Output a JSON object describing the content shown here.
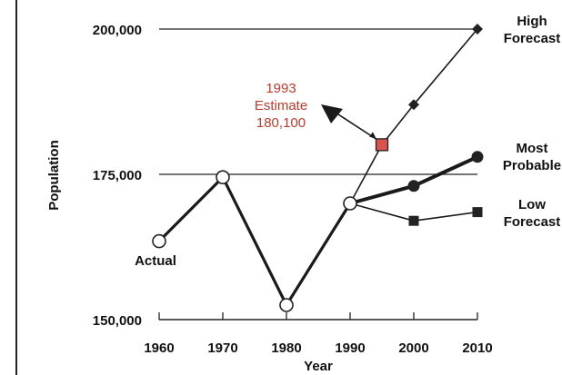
{
  "chart_data": {
    "type": "line",
    "title": "",
    "xlabel": "Year",
    "ylabel": "Population",
    "xlim": [
      1960,
      2010
    ],
    "ylim": [
      150000,
      200000
    ],
    "x_ticks": [
      1960,
      1970,
      1980,
      1990,
      2000,
      2010
    ],
    "y_ticks": [
      {
        "value": 150000,
        "label": "150,000"
      },
      {
        "value": 175000,
        "label": "175,000"
      },
      {
        "value": 200000,
        "label": "200,000"
      }
    ],
    "reference_lines": [
      175000,
      200000
    ],
    "series": [
      {
        "name": "Actual",
        "x": [
          1960,
          1970,
          1980,
          1990
        ],
        "y": [
          163500,
          174500,
          152500,
          170000
        ],
        "color": "#1a1a1a",
        "marker": "open-circle"
      },
      {
        "name": "High Forecast",
        "x": [
          1990,
          1995,
          2000,
          2010
        ],
        "y": [
          170000,
          180100,
          187000,
          200000
        ],
        "color": "#1a1a1a",
        "marker": "diamond"
      },
      {
        "name": "Most Probable",
        "x": [
          1990,
          2000,
          2010
        ],
        "y": [
          170000,
          173000,
          178000
        ],
        "color": "#1a1a1a",
        "marker": "filled-circle"
      },
      {
        "name": "Low Forecast",
        "x": [
          1990,
          2000,
          2010
        ],
        "y": [
          170000,
          167000,
          168500
        ],
        "color": "#1a1a1a",
        "marker": "square"
      }
    ],
    "estimate": {
      "x": 1995,
      "y": 180100,
      "color": "#d9534f",
      "lines": [
        "1993",
        "Estimate",
        "180,100"
      ]
    },
    "labels": {
      "actual": "Actual",
      "high": [
        "High",
        "Forecast"
      ],
      "most": [
        "Most",
        "Probable"
      ],
      "low": [
        "Low",
        "Forecast"
      ]
    }
  }
}
